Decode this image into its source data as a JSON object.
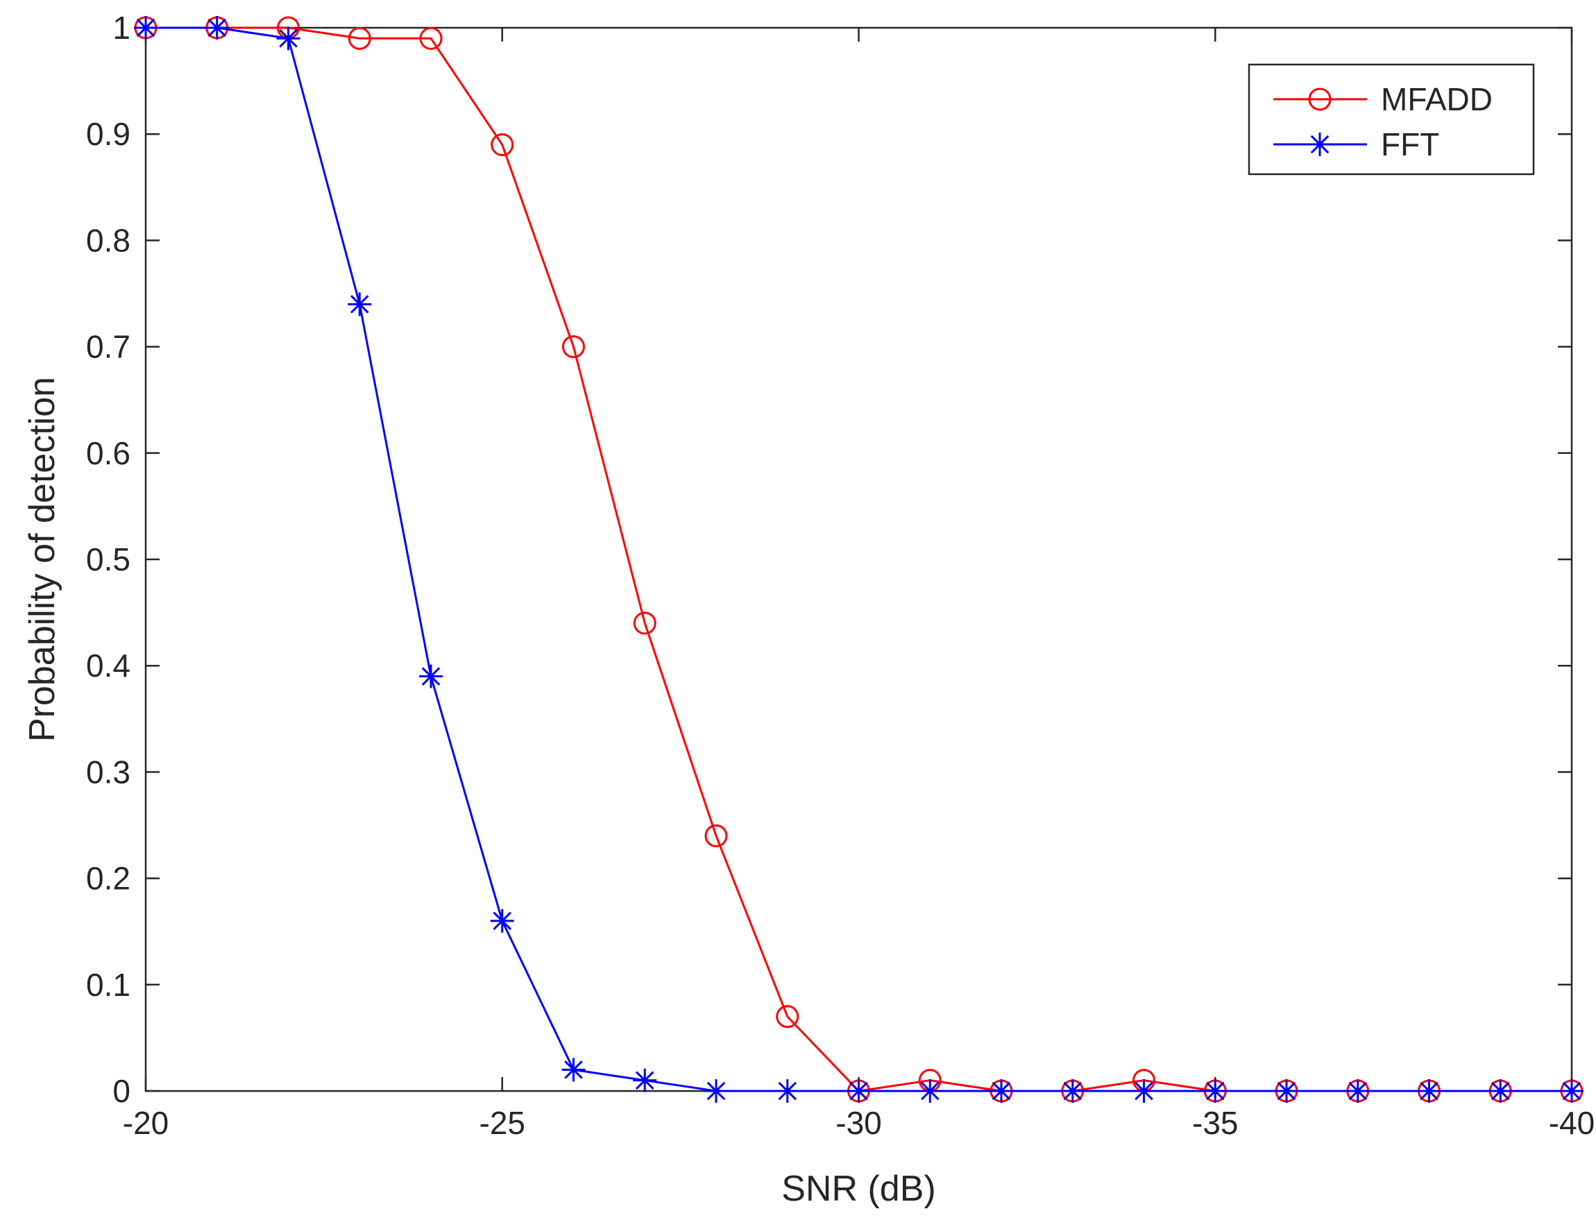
{
  "chart_data": {
    "type": "line",
    "title": "",
    "xlabel": "SNR (dB)",
    "ylabel": "Probability of detection",
    "xlim": [
      -20,
      -40
    ],
    "ylim": [
      0,
      1
    ],
    "x_reversed": true,
    "grid": false,
    "legend_position": "top-right",
    "xticks": [
      -20,
      -25,
      -30,
      -35,
      -40
    ],
    "xtick_labels": [
      "-20",
      "-25",
      "-30",
      "-35",
      "-40"
    ],
    "yticks": [
      0,
      0.1,
      0.2,
      0.3,
      0.4,
      0.5,
      0.6,
      0.7,
      0.8,
      0.9,
      1
    ],
    "ytick_labels": [
      "0",
      "0.1",
      "0.2",
      "0.3",
      "0.4",
      "0.5",
      "0.6",
      "0.7",
      "0.8",
      "0.9",
      "1"
    ],
    "x": [
      -20,
      -21,
      -22,
      -23,
      -24,
      -25,
      -26,
      -27,
      -28,
      -29,
      -30,
      -31,
      -32,
      -33,
      -34,
      -35,
      -36,
      -37,
      -38,
      -39,
      -40
    ],
    "series": [
      {
        "name": "MFADD",
        "color": "#ff0000",
        "marker": "circle",
        "values": [
          1,
          1,
          1,
          0.99,
          0.99,
          0.89,
          0.7,
          0.44,
          0.24,
          0.07,
          0,
          0.01,
          0,
          0,
          0.01,
          0,
          0,
          0,
          0,
          0,
          0
        ]
      },
      {
        "name": "FFT",
        "color": "#0000ff",
        "marker": "asterisk",
        "values": [
          1,
          1,
          0.99,
          0.74,
          0.39,
          0.16,
          0.02,
          0.01,
          0,
          0,
          0,
          0,
          0,
          0,
          0,
          0,
          0,
          0,
          0,
          0,
          0
        ]
      }
    ]
  }
}
